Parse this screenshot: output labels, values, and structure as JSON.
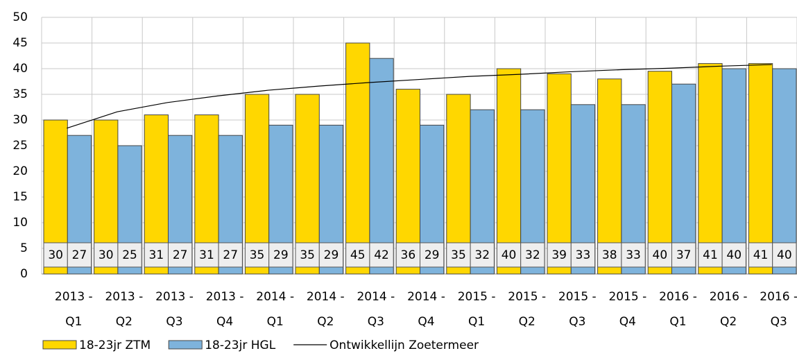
{
  "chart_data": {
    "type": "bar",
    "categories": [
      [
        "2013 -",
        "Q1"
      ],
      [
        "2013 -",
        "Q2"
      ],
      [
        "2013 -",
        "Q3"
      ],
      [
        "2013 -",
        "Q4"
      ],
      [
        "2014 -",
        "Q1"
      ],
      [
        "2014 -",
        "Q2"
      ],
      [
        "2014 -",
        "Q3"
      ],
      [
        "2014 -",
        "Q4"
      ],
      [
        "2015 -",
        "Q1"
      ],
      [
        "2015 -",
        "Q2"
      ],
      [
        "2015 -",
        "Q3"
      ],
      [
        "2015 -",
        "Q4"
      ],
      [
        "2016 -",
        "Q1"
      ],
      [
        "2016 -",
        "Q2"
      ],
      [
        "2016 -",
        "Q3"
      ]
    ],
    "series": [
      {
        "name": "18-23jr ZTM",
        "color": "#ffd700",
        "values": [
          30,
          30,
          31,
          31,
          35,
          35,
          45,
          36,
          35,
          40,
          39,
          38,
          39.5,
          41,
          41
        ],
        "value_labels": [
          "30",
          "30",
          "31",
          "31",
          "35",
          "35",
          "45",
          "36",
          "35",
          "40",
          "39",
          "38",
          "40",
          "41",
          "41"
        ]
      },
      {
        "name": "18-23jr HGL",
        "color": "#7eb3dc",
        "values": [
          27,
          25,
          27,
          27,
          29,
          29,
          42,
          29,
          32,
          32,
          33,
          33,
          37,
          40,
          40
        ]
      },
      {
        "name": "Ontwikkellijn Zoetermeer",
        "type": "line",
        "color": "#000000",
        "values": [
          28.4,
          31.6,
          33.4,
          34.7,
          35.8,
          36.6,
          37.3,
          37.9,
          38.5,
          38.9,
          39.4,
          39.8,
          40.1,
          40.5,
          40.8
        ]
      }
    ],
    "ylim": [
      0,
      50
    ],
    "yticks": [
      0,
      5,
      10,
      15,
      20,
      25,
      30,
      35,
      40,
      45,
      50
    ],
    "grid": true,
    "legend": "bottom"
  }
}
